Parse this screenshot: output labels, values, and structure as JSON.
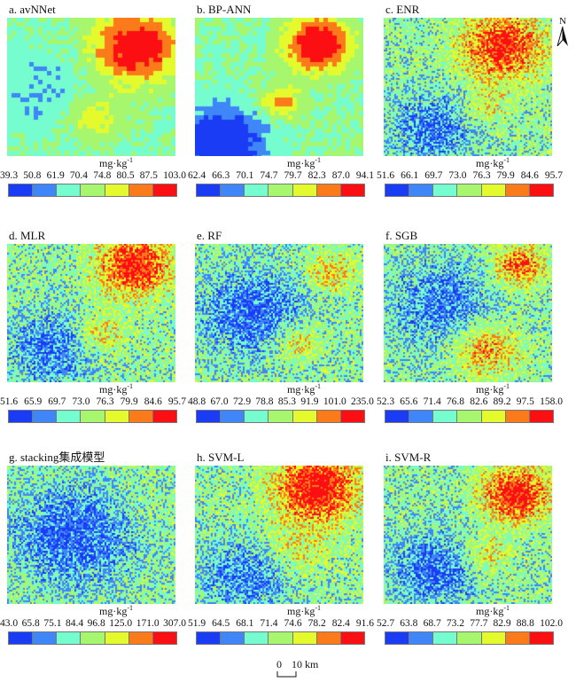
{
  "unit_label": "mg·kg",
  "unit_exp": "-1",
  "legend_colors": [
    "#1a3cf5",
    "#3f86f8",
    "#75fccf",
    "#a6f76e",
    "#e5fa2c",
    "#fb7b1a",
    "#fb0f12"
  ],
  "panels": [
    {
      "title": "a. avNNet",
      "breaks": [
        "39.3",
        "50.8",
        "61.9",
        "70.4",
        "74.8",
        "80.5",
        "87.5",
        "103.0"
      ]
    },
    {
      "title": "b. BP-ANN",
      "breaks": [
        "62.4",
        "66.3",
        "70.1",
        "74.7",
        "79.7",
        "82.3",
        "87.0",
        "94.1"
      ]
    },
    {
      "title": "c. ENR",
      "breaks": [
        "51.6",
        "66.1",
        "69.7",
        "73.0",
        "76.3",
        "79.9",
        "84.6",
        "95.7"
      ]
    },
    {
      "title": "d. MLR",
      "breaks": [
        "51.6",
        "65.9",
        "69.7",
        "73.0",
        "76.3",
        "79.9",
        "84.6",
        "95.7"
      ]
    },
    {
      "title": "e. RF",
      "breaks": [
        "48.8",
        "67.0",
        "72.9",
        "78.8",
        "85.3",
        "91.9",
        "101.0",
        "235.0"
      ]
    },
    {
      "title": "f. SGB",
      "breaks": [
        "52.3",
        "65.6",
        "71.4",
        "76.8",
        "82.6",
        "89.2",
        "97.5",
        "158.0"
      ]
    },
    {
      "title": "g. stacking集成模型",
      "breaks": [
        "43.0",
        "65.8",
        "75.1",
        "84.4",
        "96.8",
        "125.0",
        "171.0",
        "307.0"
      ]
    },
    {
      "title": "h. SVM-L",
      "breaks": [
        "51.9",
        "64.5",
        "68.1",
        "71.4",
        "74.6",
        "78.2",
        "82.4",
        "91.6"
      ]
    },
    {
      "title": "i. SVM-R",
      "breaks": [
        "52.7",
        "63.8",
        "68.7",
        "73.2",
        "77.7",
        "82.9",
        "88.8",
        "102.0"
      ]
    }
  ],
  "north_label": "N",
  "scale": {
    "zero": "0",
    "label": "10 km"
  }
}
